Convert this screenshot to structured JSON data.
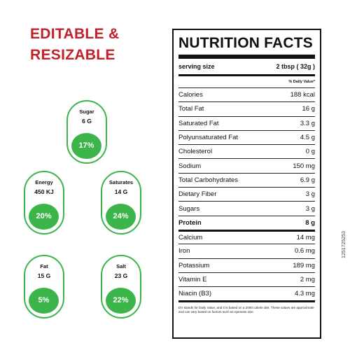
{
  "headline": {
    "line1": "EDITABLE &",
    "line2": "RESIZABLE"
  },
  "colors": {
    "brand_red": "#c4202a",
    "badge_green": "#3bb54a",
    "ink": "#111111"
  },
  "badges": [
    {
      "name": "Sugar",
      "amount": "6 G",
      "percent": "17%"
    },
    {
      "name": "Energy",
      "amount": "450 KJ",
      "percent": "20%"
    },
    {
      "name": "Saturates",
      "amount": "14 G",
      "percent": "24%"
    },
    {
      "name": "Fat",
      "amount": "15 G",
      "percent": "5%"
    },
    {
      "name": "Salt",
      "amount": "23 G",
      "percent": "22%"
    }
  ],
  "label": {
    "title": "NUTRITION FACTS",
    "serving_label": "serving size",
    "serving_value": "2 tbsp ( 32g )",
    "dv_header": "% Daily Value*",
    "rows": [
      {
        "name": "Calories",
        "value": "188 kcal"
      },
      {
        "name": "Total Fat",
        "value": "16 g"
      },
      {
        "name": "Saturated Fat",
        "value": "3.3 g"
      },
      {
        "name": "Polyunsaturated Fat",
        "value": "4.5 g"
      },
      {
        "name": "Cholesterol",
        "value": "0 g"
      },
      {
        "name": "Sodium",
        "value": "150 mg"
      },
      {
        "name": "Total Carbohydrates",
        "value": "6.9 g"
      },
      {
        "name": "Dietary Fiber",
        "value": "3 g"
      },
      {
        "name": "Sugars",
        "value": "3 g"
      },
      {
        "name": "Protein",
        "value": "8 g"
      },
      {
        "name": "Calcium",
        "value": "14 mg"
      },
      {
        "name": "Iron",
        "value": "0.6 mg"
      },
      {
        "name": "Potassium",
        "value": "189 mg"
      },
      {
        "name": "Vitamin E",
        "value": "2 mg"
      },
      {
        "name": "Niacin (B3)",
        "value": "4.3 mg"
      }
    ],
    "footnote": "DV stands for Daily Value, and it is based on a 2000 calorie diet. These values are approximate and can vary based on factors such as ripeness size."
  },
  "stock_id": "1251725253"
}
